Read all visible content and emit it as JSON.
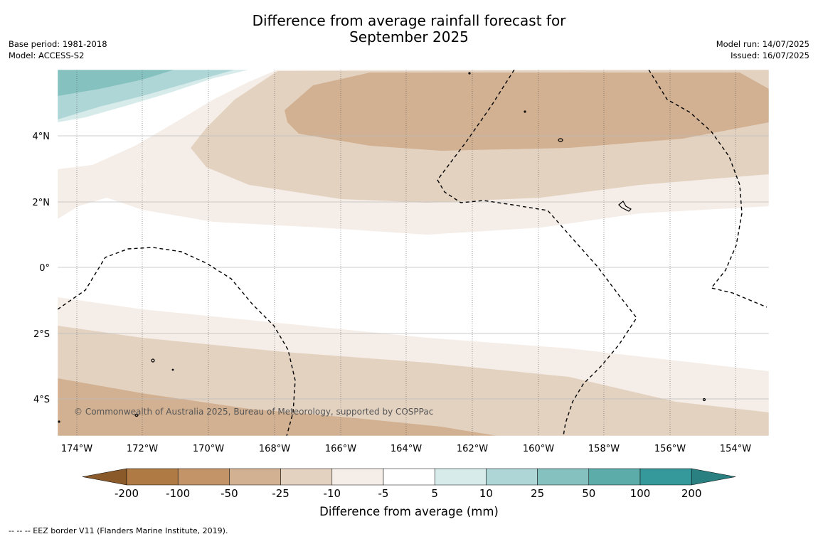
{
  "title_line1": "Difference from average rainfall forecast for",
  "title_line2": "September 2025",
  "base_period": "Base period: 1981-2018",
  "model": "Model: ACCESS-S2",
  "model_run": "Model run: 14/07/2025",
  "issued": "Issued: 16/07/2025",
  "copyright": "© Commonwealth of Australia 2025, Bureau of Meteorology, supported by COSPPac",
  "lon_labels": [
    "174°W",
    "172°W",
    "170°W",
    "168°W",
    "166°W",
    "164°W",
    "162°W",
    "160°W",
    "158°W",
    "156°W",
    "154°W"
  ],
  "lat_labels": [
    "4°N",
    "2°N",
    "0°",
    "2°S",
    "4°S"
  ],
  "colorbar": {
    "ticks": [
      "-200",
      "-100",
      "-50",
      "-25",
      "-10",
      "-5",
      "5",
      "10",
      "25",
      "50",
      "100",
      "200"
    ],
    "colors": [
      "#8b5a2b",
      "#b07a45",
      "#c29468",
      "#d2b192",
      "#e4d2c1",
      "#f5ede7",
      "#ffffff",
      "#d6ebea",
      "#aed6d6",
      "#84c1bf",
      "#5cacaa",
      "#35989a",
      "#2a7f80"
    ],
    "label": "Difference from average (mm)"
  },
  "footnote": "--  --  -- EEZ border V11 (Flanders Marine Institute, 2019)."
}
